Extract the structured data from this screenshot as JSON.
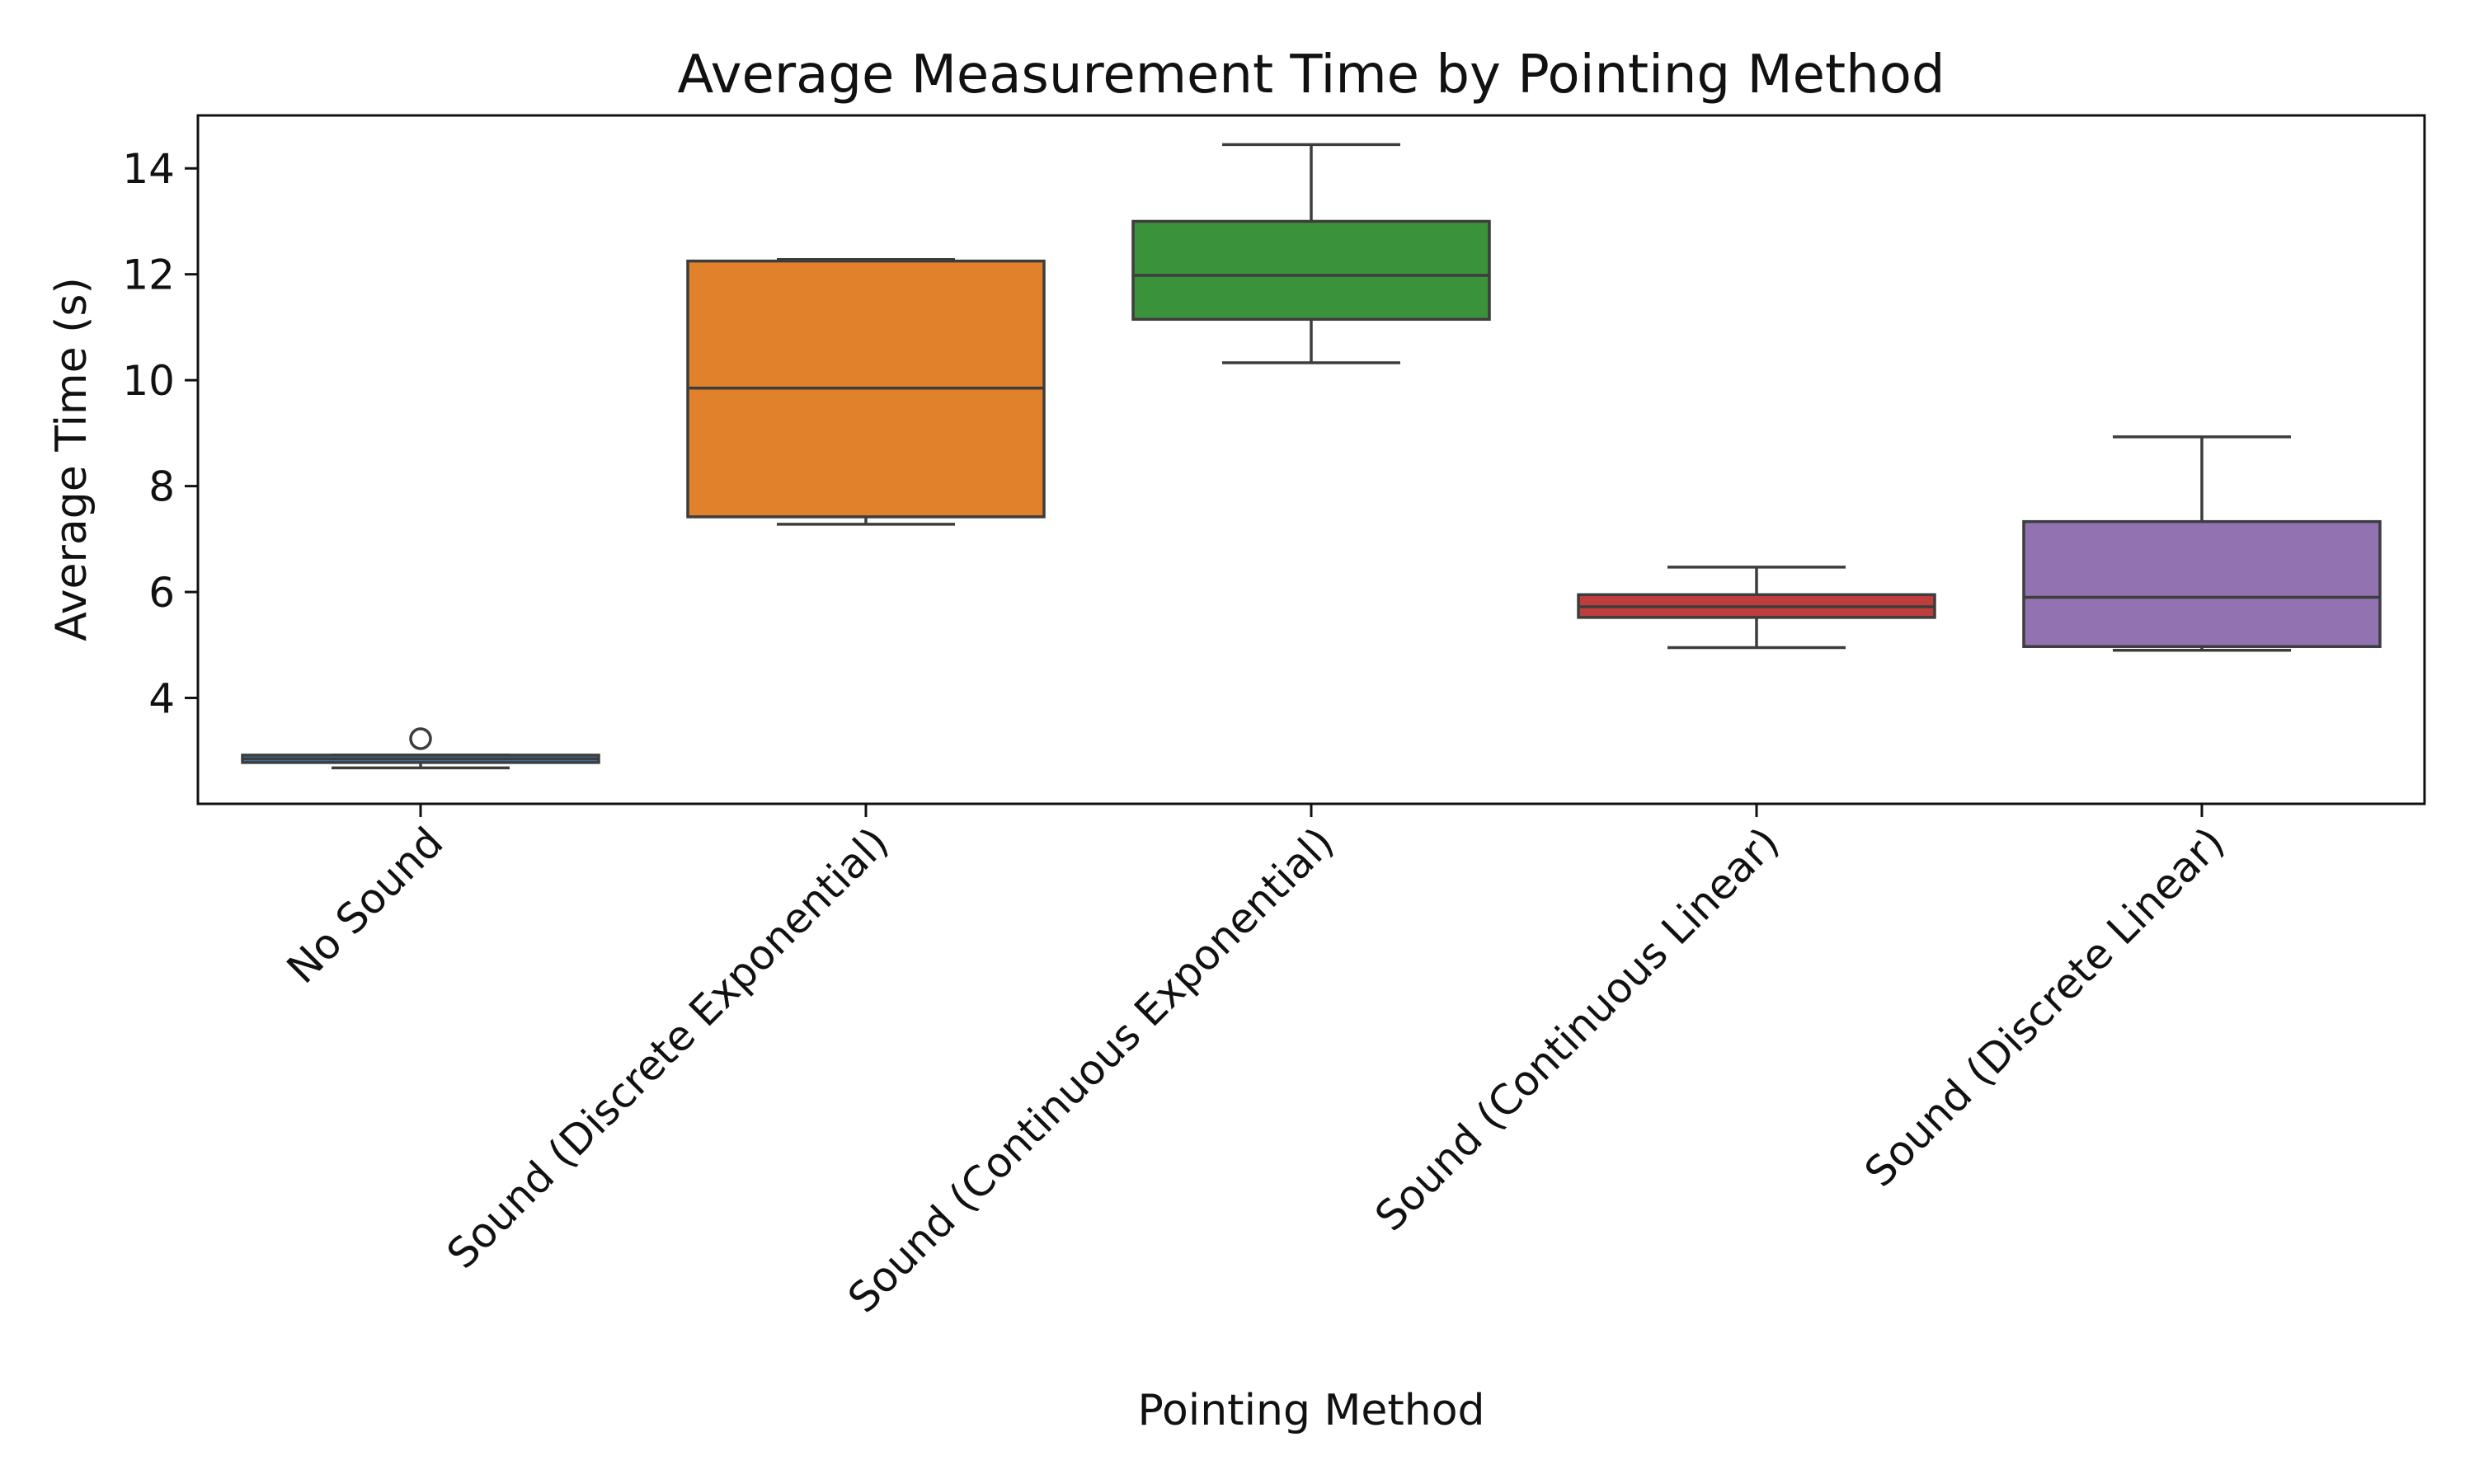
{
  "chart_data": {
    "type": "box",
    "title": "Average Measurement Time by Pointing Method",
    "xlabel": "Pointing Method",
    "ylabel": "Average Time (s)",
    "ylim": [
      2.0,
      15.0
    ],
    "yticks": [
      4,
      6,
      8,
      10,
      12,
      14
    ],
    "grid": false,
    "legend": "none",
    "categories": [
      "No Sound",
      "Sound (Discrete Exponential)",
      "Sound (Continuous Exponential)",
      "Sound (Continuous Linear)",
      "Sound (Discrete Linear)"
    ],
    "boxes": [
      {
        "category": "No Sound",
        "whisker_low": 2.68,
        "q1": 2.78,
        "median": 2.85,
        "q3": 2.92,
        "whisker_high": 2.92,
        "outliers": [
          3.23
        ],
        "color": "#3b75af"
      },
      {
        "category": "Sound (Discrete Exponential)",
        "whisker_low": 7.28,
        "q1": 7.42,
        "median": 9.85,
        "q3": 12.25,
        "whisker_high": 12.28,
        "outliers": [],
        "color": "#e1812c"
      },
      {
        "category": "Sound (Continuous Exponential)",
        "whisker_low": 10.33,
        "q1": 11.15,
        "median": 11.98,
        "q3": 13.0,
        "whisker_high": 14.45,
        "outliers": [],
        "color": "#3a923a"
      },
      {
        "category": "Sound (Continuous Linear)",
        "whisker_low": 4.95,
        "q1": 5.52,
        "median": 5.72,
        "q3": 5.95,
        "whisker_high": 6.47,
        "outliers": [],
        "color": "#c03d3e"
      },
      {
        "category": "Sound (Discrete Linear)",
        "whisker_low": 4.9,
        "q1": 4.97,
        "median": 5.9,
        "q3": 7.33,
        "whisker_high": 8.93,
        "outliers": [],
        "color": "#9372b2"
      }
    ]
  }
}
